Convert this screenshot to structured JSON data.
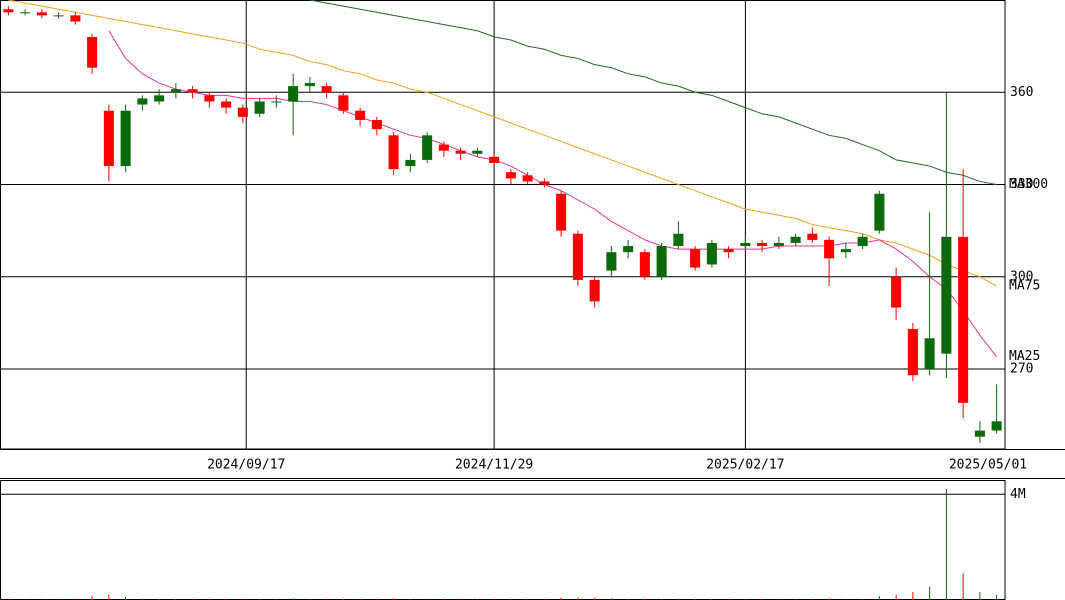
{
  "chart_data": [
    {
      "type": "candlestick",
      "xlim": [
        -0.5,
        59.5
      ],
      "xticks": [
        {
          "value": 14.2,
          "label": "2024/09/17"
        },
        {
          "value": 29,
          "label": "2024/11/29"
        },
        {
          "value": 44,
          "label": "2025/02/17"
        },
        {
          "value": 59.5,
          "label": "2025/05/01"
        }
      ],
      "ylim": [
        244,
        390
      ],
      "yticks": [
        270,
        300,
        330,
        360
      ],
      "grid": true,
      "up_color": "#0b6b0b",
      "down_color": "#ff0000",
      "open": [
        387,
        386,
        386,
        385,
        385,
        378,
        354,
        336,
        356,
        357,
        360,
        361,
        359,
        357,
        355,
        353,
        357,
        357,
        362,
        362,
        359,
        354,
        351,
        346,
        336,
        338,
        343,
        341,
        340,
        339,
        334,
        333,
        331,
        327,
        314,
        299,
        302,
        308,
        308,
        300,
        310,
        309,
        304,
        309,
        310,
        311,
        310,
        311,
        314,
        312,
        308,
        310,
        315,
        300,
        283,
        270,
        275,
        313,
        248,
        250
      ],
      "high": [
        388,
        387,
        387,
        386,
        386,
        379,
        356,
        356,
        359,
        361,
        363,
        362,
        360,
        358,
        356,
        358,
        359,
        366,
        365,
        363,
        360,
        355,
        352,
        347,
        340,
        347,
        344,
        342,
        342,
        340,
        335,
        334,
        332,
        328,
        315,
        300,
        310,
        312,
        309,
        311,
        318,
        310,
        312,
        310,
        313,
        312,
        313,
        314,
        316,
        313,
        311,
        314,
        328,
        303,
        285,
        321,
        360,
        335,
        253,
        265
      ],
      "low": [
        385,
        385,
        384,
        384,
        382,
        366,
        331,
        334,
        354,
        356,
        358,
        358,
        355,
        353,
        350,
        352,
        355,
        346,
        360,
        358,
        353,
        349,
        346,
        333,
        334,
        337,
        339,
        338,
        339,
        336,
        330,
        330,
        329,
        313,
        297,
        290,
        300,
        306,
        299,
        299,
        309,
        302,
        303,
        306,
        309,
        308,
        309,
        310,
        311,
        297,
        306,
        309,
        314,
        286,
        266,
        268,
        267,
        254,
        246,
        249
      ],
      "close": [
        386,
        386,
        385,
        385,
        383,
        368,
        336,
        354,
        358,
        359,
        361,
        360,
        357,
        355,
        352,
        357,
        357,
        362,
        363,
        360,
        354,
        351,
        348,
        335,
        338,
        346,
        341,
        340,
        341,
        337,
        332,
        331,
        330,
        315,
        299,
        292,
        308,
        310,
        300,
        310,
        314,
        303,
        311,
        308,
        311,
        310,
        311,
        313,
        312,
        306,
        309,
        313,
        327,
        290,
        268,
        280,
        313,
        259,
        250,
        253
      ],
      "series": [
        {
          "name": "MA300",
          "color": "#1e6b1e",
          "values": [
            null,
            null,
            null,
            null,
            null,
            null,
            null,
            null,
            null,
            null,
            null,
            null,
            null,
            null,
            null,
            null,
            null,
            null,
            390,
            389,
            388,
            387,
            386,
            385,
            384,
            383,
            382,
            381,
            380,
            378,
            377,
            375,
            374,
            372,
            371,
            369,
            368,
            366,
            365,
            363,
            362,
            360,
            359,
            357,
            355,
            353,
            352,
            350,
            348,
            346,
            345,
            343,
            341,
            338,
            337,
            336,
            334,
            333,
            331,
            330
          ]
        },
        {
          "name": "MA75",
          "color": "#f0a020",
          "values": [
            390,
            389,
            388,
            387,
            386,
            385,
            384,
            383,
            382,
            381,
            380,
            379,
            378,
            377,
            376,
            374,
            373,
            372,
            370,
            369,
            367,
            366,
            364,
            363,
            361,
            360,
            358,
            356,
            354,
            352,
            350,
            348,
            346,
            344,
            342,
            340,
            338,
            336,
            334,
            332,
            330,
            328,
            326,
            324,
            322,
            321,
            320,
            319,
            317,
            316,
            315,
            314,
            312,
            311,
            309,
            307,
            304,
            302,
            300,
            297
          ]
        },
        {
          "name": "MA25",
          "color": "#e0359a",
          "values": [
            null,
            null,
            null,
            null,
            null,
            null,
            380,
            371,
            366,
            363,
            361,
            360,
            359,
            359,
            358,
            358,
            358,
            357,
            357,
            356,
            354,
            352,
            350,
            348,
            346,
            345,
            343,
            341,
            339,
            338,
            336,
            333,
            330,
            328,
            325,
            322,
            318,
            315,
            312,
            310,
            309,
            309,
            309,
            309,
            309,
            309,
            310,
            310,
            310,
            310,
            311,
            311,
            312,
            309,
            305,
            300,
            296,
            289,
            281,
            274
          ]
        }
      ]
    },
    {
      "type": "volume",
      "xlim": [
        -0.5,
        59.5
      ],
      "ylim": [
        0,
        4540000
      ],
      "yticks": [
        {
          "value": 4000000,
          "label": "4M"
        }
      ],
      "grid": true,
      "up_color": "#0b6b0b",
      "down_color": "#ff0000",
      "values": [
        30000,
        20000,
        20000,
        20000,
        30000,
        150000,
        200000,
        120000,
        50000,
        40000,
        40000,
        30000,
        40000,
        30000,
        40000,
        40000,
        30000,
        60000,
        40000,
        30000,
        40000,
        40000,
        30000,
        60000,
        40000,
        50000,
        30000,
        30000,
        30000,
        30000,
        40000,
        30000,
        30000,
        80000,
        90000,
        70000,
        60000,
        40000,
        50000,
        40000,
        50000,
        40000,
        40000,
        30000,
        30000,
        30000,
        30000,
        30000,
        40000,
        60000,
        30000,
        30000,
        150000,
        200000,
        300000,
        500000,
        4200000,
        1000000,
        300000,
        200000
      ]
    }
  ]
}
